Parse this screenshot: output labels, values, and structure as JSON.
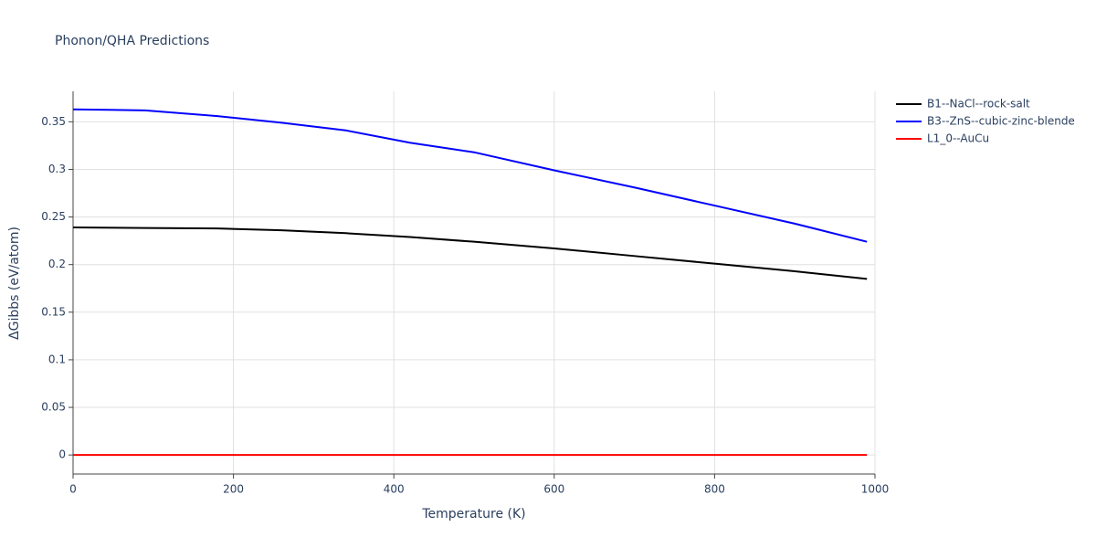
{
  "chart_data": {
    "type": "line",
    "title": "Phonon/QHA Predictions",
    "x_label": "Temperature (K)",
    "y_label": "ΔGibbs (eV/atom)",
    "x": [
      0,
      90,
      180,
      260,
      340,
      420,
      500,
      600,
      700,
      800,
      900,
      990
    ],
    "series": [
      {
        "name": "B1--NaCl--rock-salt",
        "color": "#000000",
        "values": [
          0.239,
          0.2385,
          0.238,
          0.236,
          0.233,
          0.229,
          0.224,
          0.217,
          0.209,
          0.201,
          0.193,
          0.185
        ]
      },
      {
        "name": "B3--ZnS--cubic-zinc-blende",
        "color": "#0000ff",
        "values": [
          0.363,
          0.362,
          0.356,
          0.349,
          0.341,
          0.328,
          0.318,
          0.299,
          0.281,
          0.262,
          0.243,
          0.224
        ]
      },
      {
        "name": "L1_0--AuCu",
        "color": "#ff0000",
        "values": [
          0,
          0,
          0,
          0,
          0,
          0,
          0,
          0,
          0,
          0,
          0,
          0
        ]
      }
    ],
    "xlim": [
      0,
      1000
    ],
    "xticks": [
      0,
      200,
      400,
      600,
      800,
      1000
    ],
    "ylim": [
      -0.02,
      0.382
    ],
    "yticks": [
      0,
      0.05,
      0.1,
      0.15,
      0.2,
      0.25,
      0.3,
      0.35
    ],
    "grid": true,
    "legend": "right"
  }
}
